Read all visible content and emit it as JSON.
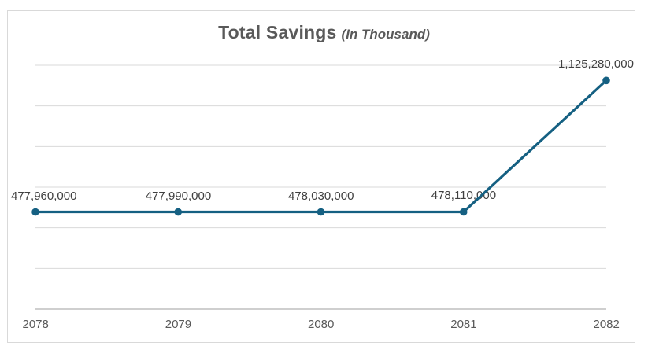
{
  "title": {
    "main": "Total Savings",
    "sub": "(In Thousand)"
  },
  "chart_data": {
    "type": "line",
    "x": [
      "2078",
      "2079",
      "2080",
      "2081",
      "2082"
    ],
    "series": [
      {
        "name": "Total Savings",
        "values": [
          477960000,
          477990000,
          478030000,
          478110000,
          1125280000
        ]
      }
    ],
    "data_labels": [
      "477,960,000",
      "477,990,000",
      "478,030,000",
      "478,110,000",
      "1,125,280,000"
    ],
    "xlabel": "",
    "ylabel": "",
    "ylim": [
      0,
      1200000000
    ],
    "gridline_step": 200000000,
    "grid": true,
    "legend": "none",
    "marker": "circle"
  },
  "colors": {
    "line": "#156082",
    "marker": "#156082",
    "gridline": "#D9D9D9",
    "axis_line": "#BFBFBF",
    "title": "#595959",
    "data_label": "#404040",
    "axis_label": "#595959",
    "border": "#D9D9D9",
    "background": "#FFFFFF"
  }
}
